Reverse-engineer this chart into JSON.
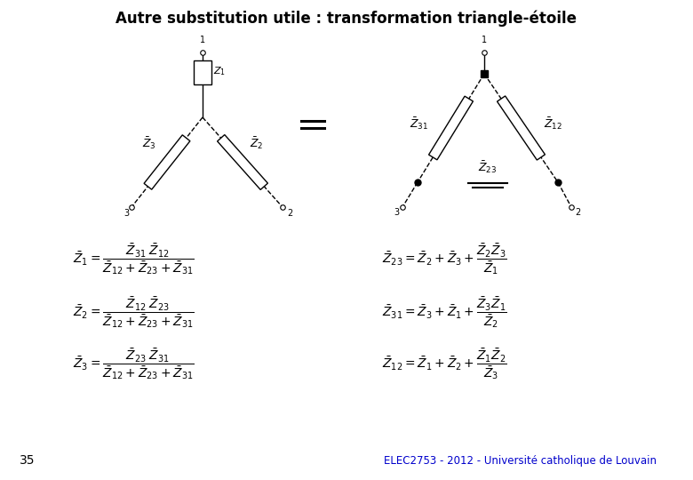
{
  "title": "Autre substitution utile : transformation triangle-étoile",
  "footer_text": "ELEC2753 - 2012 - Université catholique de Louvain",
  "page_number": "35",
  "footer_color": "#0000CC",
  "bg_color": "#ffffff",
  "text_color": "#000000",
  "eq_left": [
    "\\bar{Z}_1 = \\dfrac{\\bar{Z}_{31}\\;\\bar{Z}_{12}}{\\bar{Z}_{12}+\\bar{Z}_{23}+\\bar{Z}_{31}}",
    "\\bar{Z}_2 = \\dfrac{\\bar{Z}_{12}\\;\\bar{Z}_{23}}{\\bar{Z}_{12}+\\bar{Z}_{23}+\\bar{Z}_{31}}",
    "\\bar{Z}_3 = \\dfrac{\\bar{Z}_{23}\\;\\bar{Z}_{31}}{\\bar{Z}_{12}+\\bar{Z}_{23}+\\bar{Z}_{31}}"
  ],
  "eq_right": [
    "\\bar{Z}_{23} = \\bar{Z}_2+\\bar{Z}_3+\\dfrac{\\bar{Z}_2\\bar{Z}_3}{\\bar{Z}_1}",
    "\\bar{Z}_{31} = \\bar{Z}_3+\\bar{Z}_1+\\dfrac{\\bar{Z}_3\\bar{Z}_1}{\\bar{Z}_2}",
    "\\bar{Z}_{12} = \\bar{Z}_1+\\bar{Z}_2+\\dfrac{\\bar{Z}_1\\bar{Z}_2}{\\bar{Z}_3}"
  ]
}
